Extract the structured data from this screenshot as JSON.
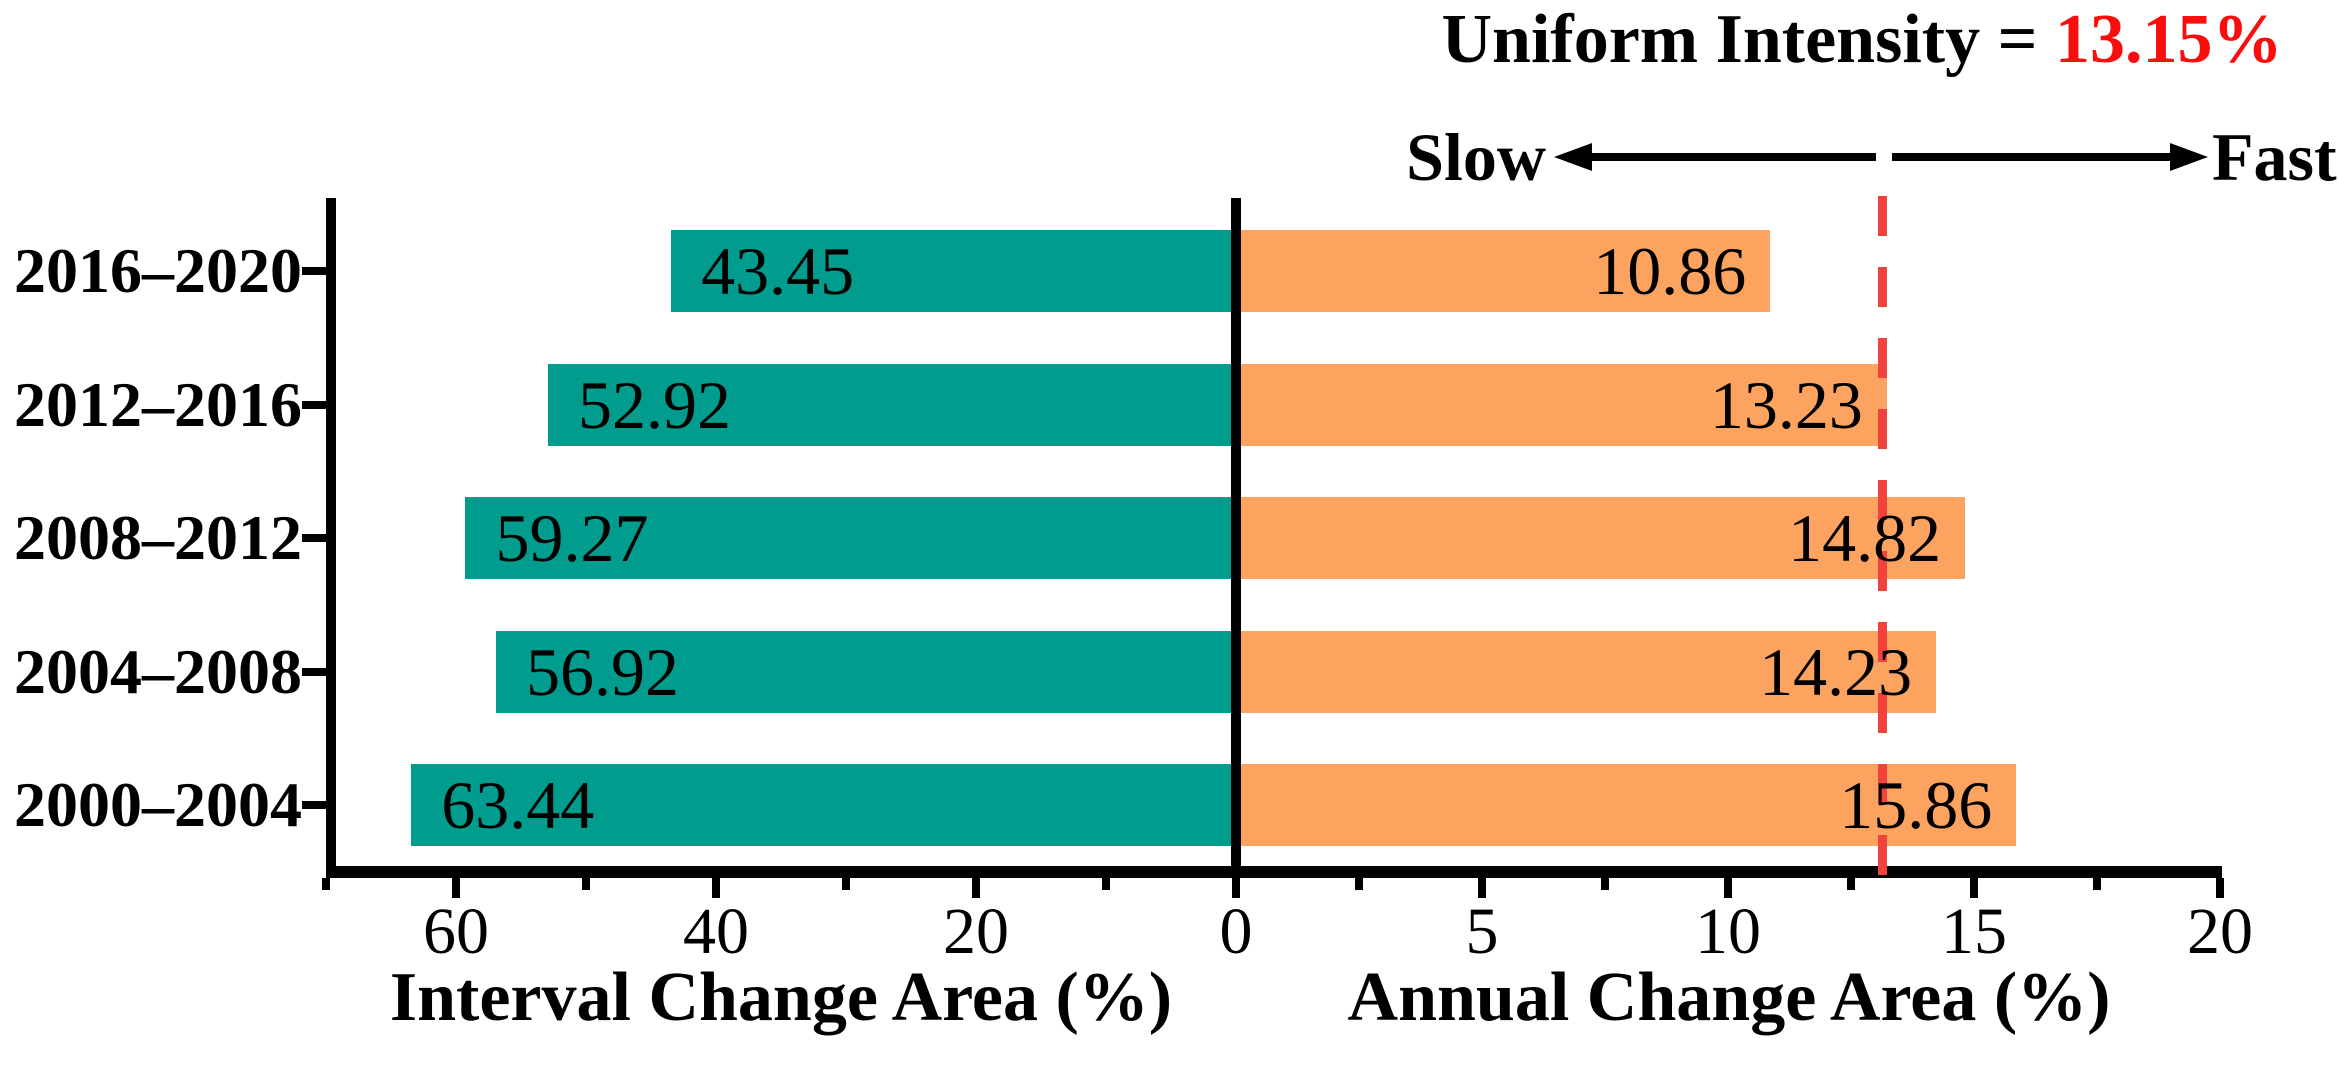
{
  "chart_data": {
    "type": "bar",
    "orientation": "horizontal-diverging",
    "categories": [
      "2016–2020",
      "2012–2016",
      "2008–2012",
      "2004–2008",
      "2000–2004"
    ],
    "series": [
      {
        "name": "Interval Change Area (%)",
        "side": "left",
        "color": "#009C8E",
        "values": [
          43.45,
          52.92,
          59.27,
          56.92,
          63.44
        ]
      },
      {
        "name": "Annual Change Area (%)",
        "side": "right",
        "color": "#FCA360",
        "values": [
          10.86,
          13.23,
          14.82,
          14.23,
          15.86
        ]
      }
    ],
    "left_axis": {
      "label": "Interval Change Area (%)",
      "major_ticks": [
        60,
        40,
        20
      ],
      "minor_ticks": [
        70,
        50,
        30,
        10
      ],
      "range_max": 70
    },
    "right_axis": {
      "label": "Annual Change Area (%)",
      "major_ticks": [
        5,
        10,
        15,
        20
      ],
      "minor_ticks": [
        2.5,
        7.5,
        12.5,
        17.5
      ],
      "range_max": 20.5
    },
    "center_tick_label": "0",
    "reference_line": {
      "value": 13.15,
      "color": "#F2423D",
      "style": "dashed"
    },
    "legend_position": "none",
    "grid": false
  },
  "annotations": {
    "title_prefix": "Uniform Intensity = ",
    "title_value": "13.15%",
    "title_value_color": "#FA0D0D",
    "slow_label": "Slow",
    "fast_label": "Fast"
  }
}
